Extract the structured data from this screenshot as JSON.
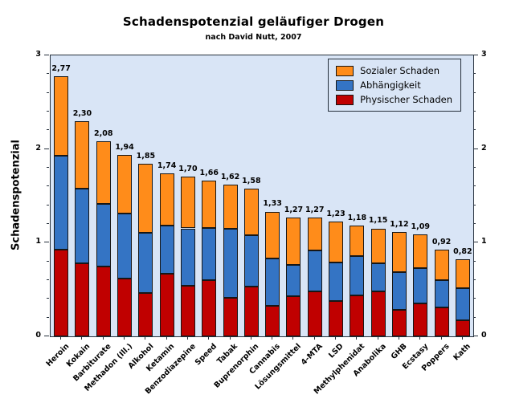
{
  "chart_data": {
    "type": "bar",
    "stacked": true,
    "title": "Schadenspotenzial geläufiger Drogen",
    "subtitle": "nach David Nutt, 2007",
    "ylabel": "Schadenspotenzial",
    "ylim": [
      0,
      3
    ],
    "yticks": [
      0,
      1,
      2,
      3
    ],
    "minor_tick_step": 0.2,
    "grid": false,
    "legend_position": "top-right-inside",
    "categories": [
      "Heroin",
      "Kokain",
      "Barbiturate",
      "Methadon (Ill.)",
      "Alkohol",
      "Ketamin",
      "Benzodiazepine",
      "Speed",
      "Tabak",
      "Buprenorphin",
      "Cannabis",
      "Lösungsmittel",
      "4-MTA",
      "LSD",
      "Methylphenidat",
      "Anabolika",
      "GHB",
      "Ecstasy",
      "Poppers",
      "Kath"
    ],
    "series": [
      {
        "name": "Physischer Schaden",
        "color": "#c00000",
        "values": [
          0.927,
          0.777,
          0.743,
          0.62,
          0.467,
          0.667,
          0.543,
          0.603,
          0.413,
          0.533,
          0.33,
          0.427,
          0.48,
          0.377,
          0.44,
          0.483,
          0.287,
          0.35,
          0.31,
          0.17
        ]
      },
      {
        "name": "Abhängigkeit",
        "color": "#3474c4",
        "values": [
          1.0,
          0.797,
          0.67,
          0.693,
          0.643,
          0.513,
          0.61,
          0.557,
          0.737,
          0.547,
          0.503,
          0.337,
          0.433,
          0.41,
          0.417,
          0.293,
          0.397,
          0.377,
          0.29,
          0.345
        ]
      },
      {
        "name": "Sozialer Schaden",
        "color": "#ff8c1a",
        "values": [
          0.847,
          0.723,
          0.667,
          0.623,
          0.737,
          0.563,
          0.55,
          0.5,
          0.473,
          0.497,
          0.5,
          0.507,
          0.353,
          0.44,
          0.323,
          0.377,
          0.433,
          0.363,
          0.323,
          0.305
        ]
      }
    ],
    "totals_labels": [
      "2,77",
      "2,30",
      "2,08",
      "1,94",
      "1,85",
      "1,74",
      "1,70",
      "1,66",
      "1,62",
      "1,58",
      "1,33",
      "1,27",
      "1,27",
      "1,23",
      "1,18",
      "1,15",
      "1,12",
      "1,09",
      "0,92",
      "0,82"
    ],
    "legend": [
      {
        "label": "Sozialer Schaden",
        "color": "#ff8c1a"
      },
      {
        "label": "Abhängigkeit",
        "color": "#3474c4"
      },
      {
        "label": "Physischer Schaden",
        "color": "#c00000"
      }
    ],
    "colors": {
      "plot_background": "#d9e5f6",
      "frame": "#26303c",
      "bar_outline": "#161616",
      "text": "#000000",
      "figure_background": "#ffffff"
    }
  }
}
